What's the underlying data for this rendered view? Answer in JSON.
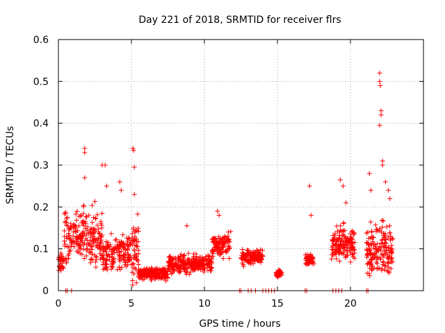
{
  "chart_data": {
    "type": "scatter",
    "title": "Day 221 of 2018, SRMTID for receiver flrs",
    "xlabel": "GPS time / hours",
    "ylabel": "SRMTID / TECUs",
    "xlim": [
      0,
      25
    ],
    "ylim": [
      0,
      0.6
    ],
    "x_ticks": [
      0,
      5,
      10,
      15,
      20
    ],
    "x_tick_labels": [
      "0",
      "5",
      "10",
      "15",
      "20"
    ],
    "y_ticks": [
      0,
      0.1,
      0.2,
      0.3,
      0.4,
      0.5,
      0.6
    ],
    "y_tick_labels": [
      "0",
      "0.1",
      "0.2",
      "0.3",
      "0.4",
      "0.5",
      "0.6"
    ],
    "grid": true,
    "marker": "+",
    "series": [
      {
        "name": "SRMTID",
        "color": "#ff0000",
        "segments": [
          {
            "t0": 0.0,
            "t1": 0.4,
            "base": 0.07,
            "spread": 0.04,
            "n": 30
          },
          {
            "t0": 0.4,
            "t1": 3.0,
            "base": 0.13,
            "spread": 0.09,
            "n": 220
          },
          {
            "t0": 3.0,
            "t1": 5.0,
            "base": 0.09,
            "spread": 0.06,
            "n": 160
          },
          {
            "t0": 5.0,
            "t1": 5.5,
            "base": 0.1,
            "spread": 0.1,
            "n": 50
          },
          {
            "t0": 5.5,
            "t1": 7.5,
            "base": 0.04,
            "spread": 0.02,
            "n": 200
          },
          {
            "t0": 7.5,
            "t1": 10.5,
            "base": 0.065,
            "spread": 0.03,
            "n": 280
          },
          {
            "t0": 10.5,
            "t1": 11.8,
            "base": 0.11,
            "spread": 0.04,
            "n": 110
          },
          {
            "t0": 12.5,
            "t1": 14.0,
            "base": 0.08,
            "spread": 0.025,
            "n": 140
          },
          {
            "t0": 14.9,
            "t1": 15.3,
            "base": 0.04,
            "spread": 0.012,
            "n": 40
          },
          {
            "t0": 16.9,
            "t1": 17.5,
            "base": 0.075,
            "spread": 0.02,
            "n": 50
          },
          {
            "t0": 18.7,
            "t1": 20.3,
            "base": 0.11,
            "spread": 0.06,
            "n": 160
          },
          {
            "t0": 21.1,
            "t1": 22.9,
            "base": 0.1,
            "spread": 0.09,
            "n": 180
          }
        ],
        "points": [
          [
            0.5,
            0.0
          ],
          [
            0.6,
            0.0
          ],
          [
            0.9,
            0.0
          ],
          [
            1.8,
            0.33
          ],
          [
            1.8,
            0.34
          ],
          [
            1.8,
            0.27
          ],
          [
            3.0,
            0.3
          ],
          [
            3.2,
            0.3
          ],
          [
            3.3,
            0.25
          ],
          [
            4.2,
            0.26
          ],
          [
            4.3,
            0.24
          ],
          [
            5.1,
            0.34
          ],
          [
            5.15,
            0.335
          ],
          [
            5.2,
            0.295
          ],
          [
            5.2,
            0.23
          ],
          [
            8.8,
            0.155
          ],
          [
            10.9,
            0.19
          ],
          [
            11.0,
            0.18
          ],
          [
            12.4,
            0.0
          ],
          [
            12.5,
            0.0
          ],
          [
            13.0,
            0.0
          ],
          [
            13.2,
            0.0
          ],
          [
            13.5,
            0.0
          ],
          [
            14.0,
            0.0
          ],
          [
            14.2,
            0.0
          ],
          [
            14.4,
            0.0
          ],
          [
            14.6,
            0.0
          ],
          [
            14.8,
            0.0
          ],
          [
            16.9,
            0.0
          ],
          [
            17.0,
            0.0
          ],
          [
            17.2,
            0.25
          ],
          [
            17.3,
            0.18
          ],
          [
            18.8,
            0.0
          ],
          [
            19.0,
            0.0
          ],
          [
            19.2,
            0.0
          ],
          [
            19.4,
            0.0
          ],
          [
            19.3,
            0.265
          ],
          [
            19.5,
            0.25
          ],
          [
            19.7,
            0.21
          ],
          [
            21.1,
            0.0
          ],
          [
            21.2,
            0.0
          ],
          [
            21.3,
            0.28
          ],
          [
            21.4,
            0.24
          ],
          [
            22.0,
            0.52
          ],
          [
            22.0,
            0.5
          ],
          [
            22.05,
            0.49
          ],
          [
            22.1,
            0.43
          ],
          [
            22.1,
            0.42
          ],
          [
            22.0,
            0.395
          ],
          [
            22.2,
            0.31
          ],
          [
            22.2,
            0.3
          ],
          [
            22.4,
            0.26
          ],
          [
            22.6,
            0.24
          ],
          [
            22.7,
            0.22
          ]
        ]
      }
    ]
  }
}
